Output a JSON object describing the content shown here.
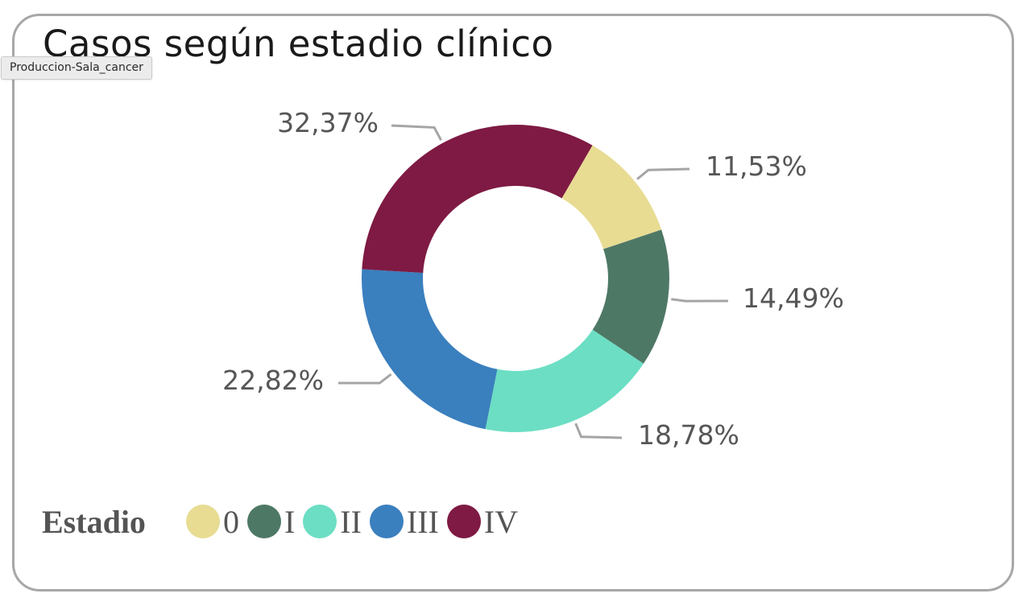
{
  "tooltip": "Produccion-Sala_cancer",
  "chart_data": {
    "type": "pie",
    "variant": "donut",
    "title": "Casos según estadio clínico",
    "legend_title": "Estadio",
    "legend_position": "bottom-left",
    "slices": [
      {
        "category": "0",
        "value": 11.53,
        "label": "11,53%",
        "color": "#E8DC93"
      },
      {
        "category": "I",
        "value": 14.49,
        "label": "14,49%",
        "color": "#4E7866"
      },
      {
        "category": "II",
        "value": 18.78,
        "label": "18,78%",
        "color": "#6CDEC3"
      },
      {
        "category": "III",
        "value": 22.82,
        "label": "22,82%",
        "color": "#3A7FBE"
      },
      {
        "category": "IV",
        "value": 32.37,
        "label": "32,37%",
        "color": "#7E1A43"
      }
    ]
  }
}
